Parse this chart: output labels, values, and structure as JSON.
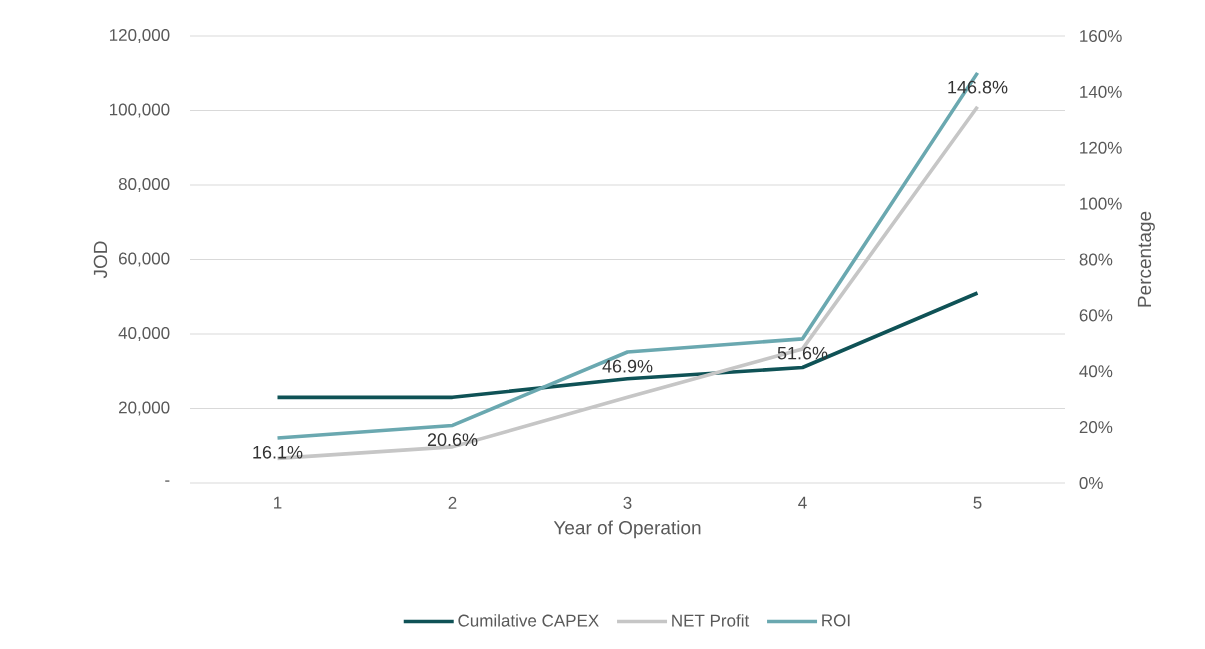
{
  "chart_data": {
    "type": "line",
    "categories": [
      "1",
      "2",
      "3",
      "4",
      "5"
    ],
    "xlabel": "Year of Operation",
    "ylabel": "JOD",
    "y2label": "Percentage",
    "series": [
      {
        "name": "Cumilative CAPEX",
        "color": "#0f5256",
        "values": [
          23000,
          23000,
          28000,
          31000,
          51000
        ]
      },
      {
        "name": "NET Profit",
        "color": "#c6c6c6",
        "values": [
          6600,
          9700,
          23000,
          36000,
          101000
        ]
      },
      {
        "name": "ROI",
        "color": "#6aa8b0",
        "axis": "y2",
        "values": [
          16.1,
          20.6,
          46.9,
          51.6,
          146.8
        ],
        "value_labels": [
          "16.1%",
          "20.6%",
          "46.9%",
          "51.6%",
          "146.8%"
        ]
      }
    ],
    "ylim": [
      0,
      120000
    ],
    "yticks": [
      {
        "value": 0,
        "label": "-"
      },
      {
        "value": 20000,
        "label": "20,000"
      },
      {
        "value": 40000,
        "label": "40,000"
      },
      {
        "value": 60000,
        "label": "60,000"
      },
      {
        "value": 80000,
        "label": "80,000"
      },
      {
        "value": 100000,
        "label": "100,000"
      },
      {
        "value": 120000,
        "label": "120,000"
      }
    ],
    "y2lim": [
      0,
      160
    ],
    "y2ticks": [
      {
        "value": 0,
        "label": "0%"
      },
      {
        "value": 20,
        "label": "20%"
      },
      {
        "value": 40,
        "label": "40%"
      },
      {
        "value": 60,
        "label": "60%"
      },
      {
        "value": 80,
        "label": "80%"
      },
      {
        "value": 100,
        "label": "100%"
      },
      {
        "value": 120,
        "label": "120%"
      },
      {
        "value": 140,
        "label": "140%"
      },
      {
        "value": 160,
        "label": "160%"
      }
    ],
    "grid": "y",
    "legend": "bottom",
    "marker": "none",
    "line_style": "solid"
  }
}
